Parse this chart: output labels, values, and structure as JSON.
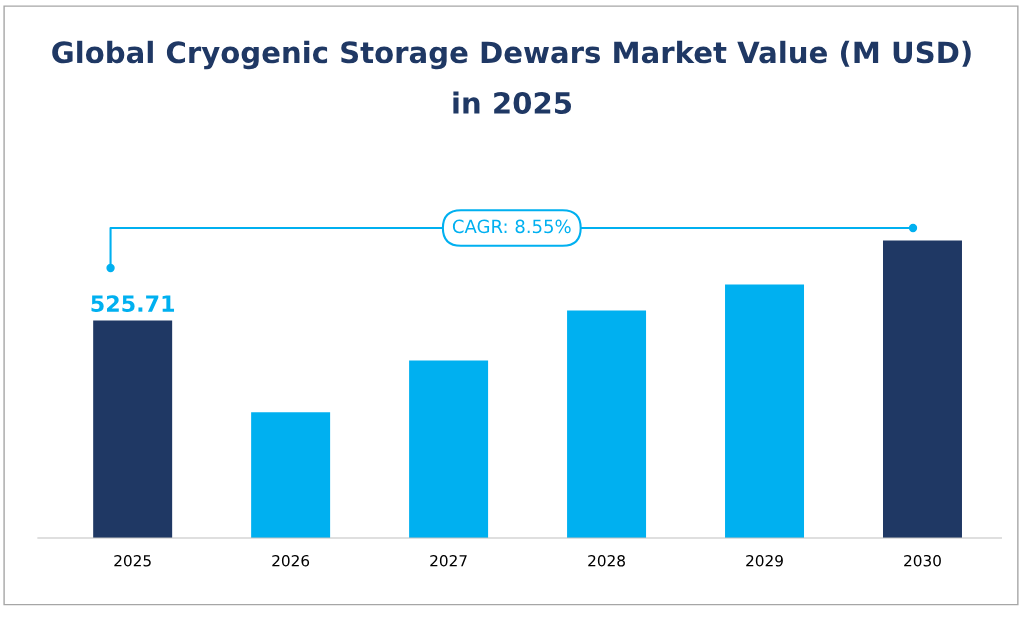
{
  "chart_data": {
    "type": "bar",
    "title": "Global Cryogenic Storage Dewars Market Value (M USD)\nin 2025",
    "categories": [
      "2025",
      "2026",
      "2027",
      "2028",
      "2029",
      "2030"
    ],
    "values": [
      525.71,
      303.9,
      429.2,
      549.8,
      612.5,
      718.6
    ],
    "colors": [
      "#1f3864",
      "#00b0f0",
      "#00b0f0",
      "#00b0f0",
      "#00b0f0",
      "#1f3864"
    ],
    "value_labels": [
      "525.71",
      null,
      null,
      null,
      null,
      null
    ],
    "annotations": [
      "CAGR: 8.55%"
    ],
    "grid": false
  }
}
